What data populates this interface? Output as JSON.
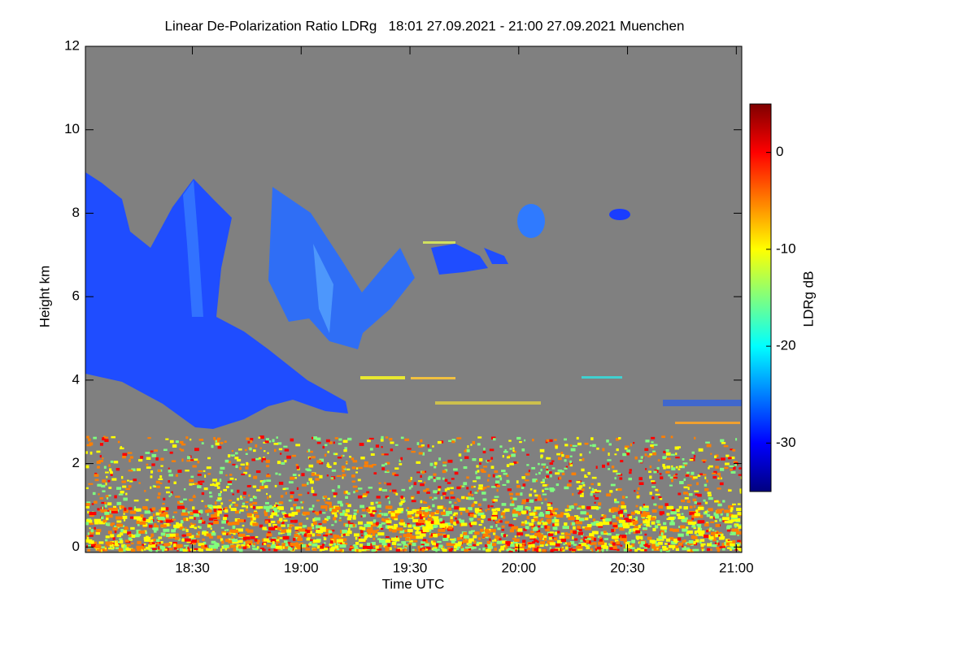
{
  "chart_data": {
    "type": "heatmap",
    "title": "Linear De-Polarization Ratio LDRg   18:01 27.09.2021 - 21:00 27.09.2021 Muenchen",
    "x_label": "Time UTC",
    "y_label": "Height km",
    "colorbar_label": "LDRg dB",
    "xlim": [
      1080.5,
      1261.5
    ],
    "xticks": [
      {
        "value": 1110,
        "label": "18:30"
      },
      {
        "value": 1140,
        "label": "19:00"
      },
      {
        "value": 1170,
        "label": "19:30"
      },
      {
        "value": 1200,
        "label": "20:00"
      },
      {
        "value": 1230,
        "label": "20:30"
      },
      {
        "value": 1260,
        "label": "21:00"
      }
    ],
    "ylim": [
      -0.13,
      12
    ],
    "yticks": [
      0,
      2,
      4,
      6,
      8,
      10,
      12
    ],
    "clim": [
      -35,
      5
    ],
    "cticks": [
      0,
      -10,
      -20,
      -30
    ],
    "colormap": [
      "#00007f",
      "#0000ff",
      "#007fff",
      "#00ffff",
      "#7fff7f",
      "#ffff00",
      "#ff7f00",
      "#ff0000",
      "#7f0000"
    ],
    "background": "#808080"
  }
}
